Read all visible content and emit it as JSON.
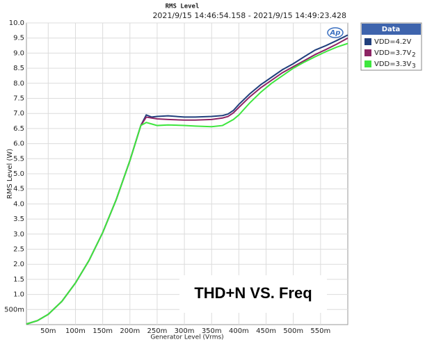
{
  "chart_data": {
    "type": "line",
    "title": "RMS Level",
    "subtitle": "2021/9/15 14:46:54.158 - 2021/9/15 14:49:23.428",
    "logo": "Ap",
    "x_label": "Generator Level (Vrms)",
    "y_label": "RMS Level (W)",
    "annotation": "THD+N VS. Freq",
    "legend_title": "Data",
    "grid": true,
    "xlim": [
      0.01,
      0.6
    ],
    "ylim": [
      0,
      10
    ],
    "xticks": [
      {
        "value": 0.05,
        "label": "50m"
      },
      {
        "value": 0.1,
        "label": "100m"
      },
      {
        "value": 0.15,
        "label": "150m"
      },
      {
        "value": 0.2,
        "label": "200m"
      },
      {
        "value": 0.25,
        "label": "250m"
      },
      {
        "value": 0.3,
        "label": "300m"
      },
      {
        "value": 0.35,
        "label": "350m"
      },
      {
        "value": 0.4,
        "label": "400m"
      },
      {
        "value": 0.45,
        "label": "450m"
      },
      {
        "value": 0.5,
        "label": "500m"
      },
      {
        "value": 0.55,
        "label": "550m"
      }
    ],
    "yticks": [
      {
        "value": 0.5,
        "label": "500m"
      },
      {
        "value": 1,
        "label": "1.0"
      },
      1.5,
      {
        "value": 2,
        "label": "2.0"
      },
      2.5,
      {
        "value": 3,
        "label": "3.0"
      },
      3.5,
      {
        "value": 4,
        "label": "4.0"
      },
      4.5,
      {
        "value": 5,
        "label": "5.0"
      },
      5.5,
      {
        "value": 6,
        "label": "6.0"
      },
      6.5,
      {
        "value": 7,
        "label": "7.0"
      },
      7.5,
      {
        "value": 8,
        "label": "8.0"
      },
      8.5,
      {
        "value": 9,
        "label": "9.0"
      },
      9.5,
      {
        "value": 10,
        "label": "10.0"
      }
    ],
    "x": [
      0.01,
      0.03,
      0.05,
      0.075,
      0.1,
      0.125,
      0.15,
      0.175,
      0.2,
      0.22,
      0.23,
      0.24,
      0.25,
      0.27,
      0.3,
      0.32,
      0.35,
      0.37,
      0.38,
      0.39,
      0.4,
      0.42,
      0.44,
      0.46,
      0.48,
      0.5,
      0.52,
      0.54,
      0.56,
      0.58,
      0.6
    ],
    "series": [
      {
        "name": "VDD=4.2V",
        "color": "#203f7c",
        "values": [
          0.02,
          0.13,
          0.34,
          0.77,
          1.38,
          2.13,
          3.05,
          4.15,
          5.44,
          6.6,
          6.95,
          6.88,
          6.9,
          6.92,
          6.88,
          6.88,
          6.9,
          6.93,
          6.98,
          7.1,
          7.3,
          7.65,
          7.95,
          8.2,
          8.45,
          8.65,
          8.88,
          9.1,
          9.25,
          9.42,
          9.6
        ]
      },
      {
        "name": "VDD=3.7V",
        "trace": "2",
        "color": "#8c2464",
        "values": [
          0.02,
          0.13,
          0.34,
          0.77,
          1.38,
          2.13,
          3.05,
          4.15,
          5.44,
          6.6,
          6.88,
          6.85,
          6.82,
          6.8,
          6.78,
          6.78,
          6.8,
          6.85,
          6.9,
          7.02,
          7.2,
          7.55,
          7.85,
          8.1,
          8.35,
          8.55,
          8.75,
          8.95,
          9.12,
          9.3,
          9.5
        ]
      },
      {
        "name": "VDD=3.3V",
        "trace": "3",
        "color": "#3ee63e",
        "values": [
          0.02,
          0.13,
          0.34,
          0.77,
          1.38,
          2.13,
          3.05,
          4.15,
          5.44,
          6.6,
          6.7,
          6.65,
          6.6,
          6.62,
          6.6,
          6.58,
          6.56,
          6.6,
          6.7,
          6.8,
          6.95,
          7.35,
          7.7,
          8.0,
          8.25,
          8.5,
          8.7,
          8.88,
          9.05,
          9.2,
          9.32
        ]
      }
    ]
  }
}
